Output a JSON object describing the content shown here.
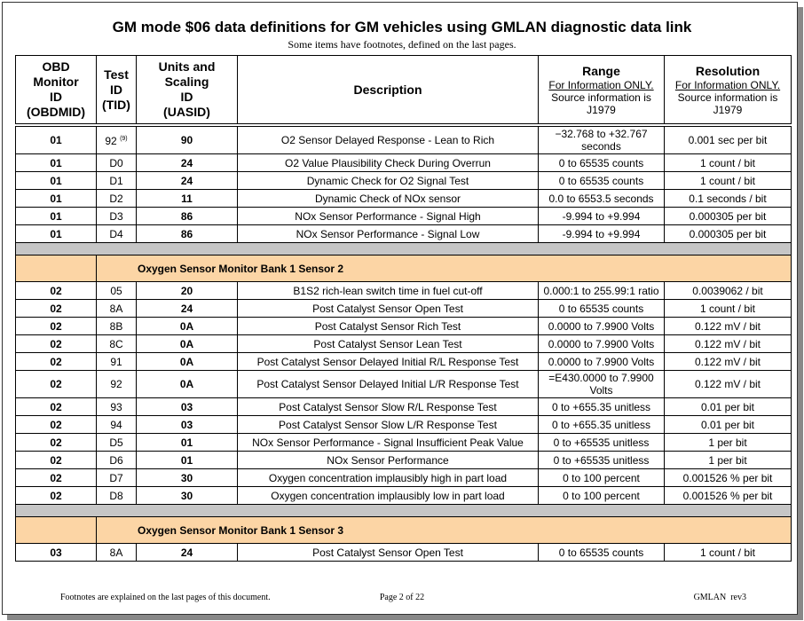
{
  "header": {
    "title": "GM mode $06 data definitions for GM vehicles using GMLAN diagnostic data link",
    "subtitle": "Some items have footnotes, defined on the last pages."
  },
  "table": {
    "columns": [
      {
        "lines": [
          "OBD",
          "Monitor",
          "ID",
          "(OBDMID)"
        ]
      },
      {
        "lines": [
          "Test",
          "ID",
          "(TID)"
        ]
      },
      {
        "lines": [
          "Units and",
          "Scaling",
          "ID",
          "(UASID)"
        ]
      },
      {
        "lines": [
          "Description"
        ]
      },
      {
        "lines": [
          "Range"
        ],
        "note": "For Information ONLY.",
        "source": [
          "Source information is",
          "J1979"
        ]
      },
      {
        "lines": [
          "Resolution"
        ],
        "note": "For Information ONLY.",
        "source": [
          "Source information is",
          "J1979"
        ]
      }
    ],
    "groups": [
      {
        "rows": [
          [
            "01",
            {
              "id": "92",
              "footnote": "(9)"
            },
            "90",
            "O2 Sensor Delayed Response - Lean to Rich",
            "−32.768 to +32.767 seconds",
            "0.001 sec per bit"
          ],
          [
            "01",
            "D0",
            "24",
            "O2 Value Plausibility Check During Overrun",
            "0 to 65535 counts",
            "1 count / bit"
          ],
          [
            "01",
            "D1",
            "24",
            "Dynamic Check for O2 Signal Test",
            "0 to 65535 counts",
            "1 count / bit"
          ],
          [
            "01",
            "D2",
            "11",
            "Dynamic Check of NOx sensor",
            "0.0 to 6553.5 seconds",
            "0.1 seconds / bit"
          ],
          [
            "01",
            "D3",
            "86",
            "NOx Sensor Performance - Signal High",
            "-9.994 to +9.994",
            "0.000305 per bit"
          ],
          [
            "01",
            "D4",
            "86",
            "NOx Sensor Performance - Signal Low",
            "-9.994 to +9.994",
            "0.000305 per bit"
          ]
        ]
      },
      {
        "title": "Oxygen Sensor Monitor Bank 1 Sensor 2",
        "rows": [
          [
            "02",
            "05",
            "20",
            "B1S2 rich-lean switch time in fuel cut-off",
            "0.000:1 to 255.99:1 ratio",
            "0.0039062 / bit"
          ],
          [
            "02",
            "8A",
            "24",
            "Post Catalyst Sensor Open Test",
            "0 to 65535 counts",
            "1 count / bit"
          ],
          [
            "02",
            "8B",
            "0A",
            "Post Catalyst Sensor Rich Test",
            "0.0000 to 7.9900 Volts",
            "0.122 mV / bit"
          ],
          [
            "02",
            "8C",
            "0A",
            "Post Catalyst Sensor Lean Test",
            "0.0000 to 7.9900 Volts",
            "0.122 mV / bit"
          ],
          [
            "02",
            "91",
            "0A",
            "Post Catalyst Sensor Delayed Initial R/L Response Test",
            "0.0000 to 7.9900 Volts",
            "0.122 mV / bit"
          ],
          [
            "02",
            "92",
            "0A",
            "Post Catalyst Sensor Delayed Initial L/R Response Test",
            "=E430.0000 to 7.9900 Volts",
            "0.122 mV / bit"
          ],
          [
            "02",
            "93",
            "03",
            "Post Catalyst Sensor Slow R/L Response Test",
            "0 to +655.35 unitless",
            "0.01 per bit"
          ],
          [
            "02",
            "94",
            "03",
            "Post Catalyst Sensor Slow L/R Response Test",
            "0 to +655.35 unitless",
            "0.01 per bit"
          ],
          [
            "02",
            "D5",
            "01",
            "NOx Sensor Performance - Signal Insufficient Peak Value",
            "0 to +65535 unitless",
            "1 per bit"
          ],
          [
            "02",
            "D6",
            "01",
            "NOx Sensor Performance",
            "0 to +65535 unitless",
            "1 per bit"
          ],
          [
            "02",
            "D7",
            "30",
            "Oxygen concentration implausibly high in part load",
            "0 to 100 percent",
            "0.001526 % per bit"
          ],
          [
            "02",
            "D8",
            "30",
            "Oxygen concentration implausibly low in part load",
            "0 to 100 percent",
            "0.001526 % per bit"
          ]
        ]
      },
      {
        "title": "Oxygen Sensor Monitor Bank 1 Sensor 3",
        "rows": [
          [
            "03",
            "8A",
            "24",
            "Post Catalyst Sensor Open Test",
            "0 to 65535 counts",
            "1 count / bit"
          ]
        ]
      }
    ]
  },
  "footer": {
    "left": "Footnotes are explained on the last pages of this document.",
    "center": "Page 2 of 22",
    "right": "GMLAN  rev3"
  }
}
